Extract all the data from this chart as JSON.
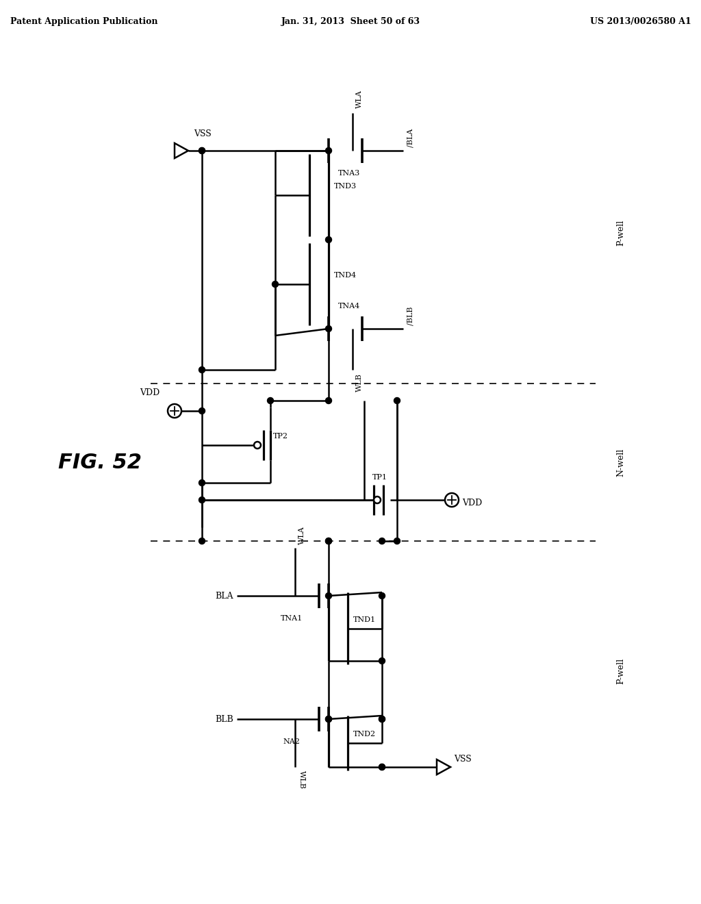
{
  "header_left": "Patent Application Publication",
  "header_mid": "Jan. 31, 2013  Sheet 50 of 63",
  "header_right": "US 2013/0026580 A1",
  "fig_label": "FIG. 52",
  "bg": "#ffffff"
}
